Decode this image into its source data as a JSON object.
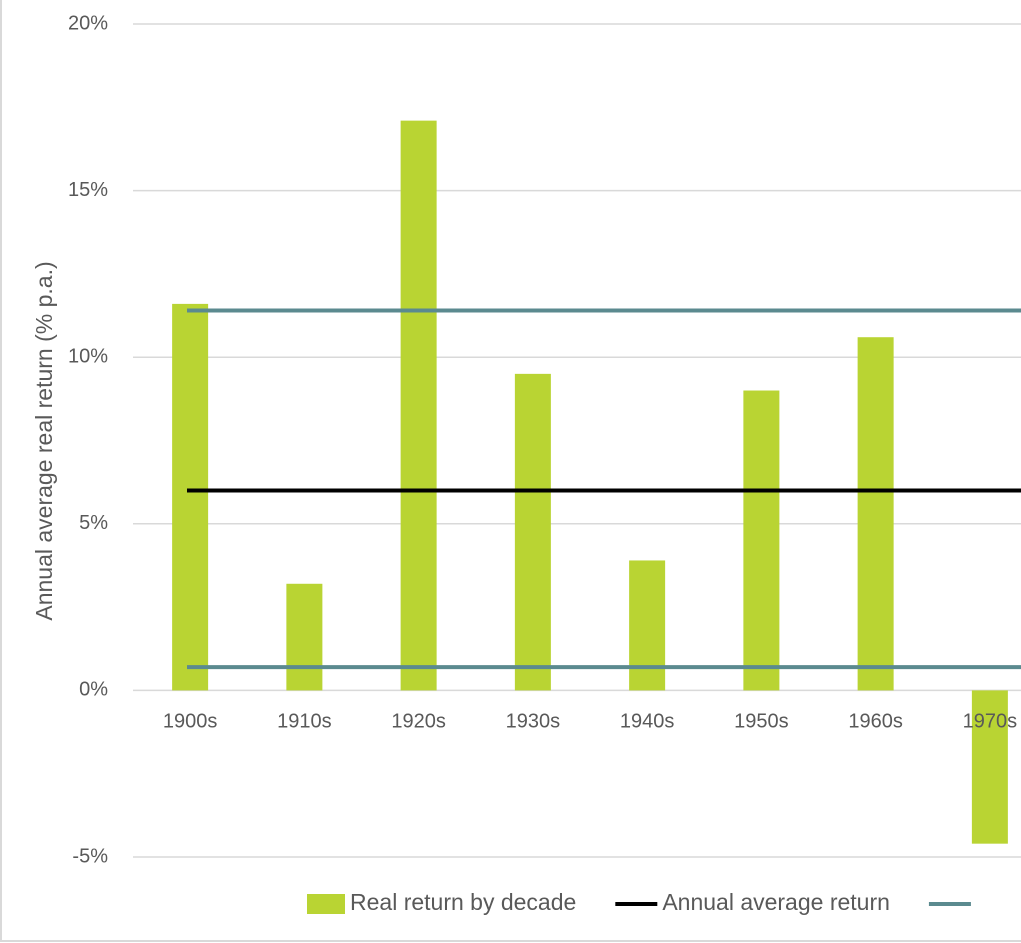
{
  "chart_data": {
    "type": "bar",
    "ylabel": "Annual average real return (% p.a.)",
    "categories": [
      "1900s",
      "1910s",
      "1920s",
      "1930s",
      "1940s",
      "1950s",
      "1960s",
      "1970s"
    ],
    "series": [
      {
        "name": "Real return by decade",
        "color": "#b9d433",
        "values": [
          11.6,
          3.2,
          17.1,
          9.5,
          3.9,
          9.0,
          10.6,
          -4.6
        ]
      }
    ],
    "hlines": [
      {
        "name": "Annual average return",
        "color": "#000000",
        "values": [
          6.0
        ]
      },
      {
        "color": "#5b8a8f",
        "values": [
          11.4,
          0.7
        ]
      }
    ],
    "ylim": [
      -5,
      20
    ],
    "yticks": [
      {
        "value": -5,
        "label": "-5%"
      },
      {
        "value": 0,
        "label": "0%"
      },
      {
        "value": 5,
        "label": "5%"
      },
      {
        "value": 10,
        "label": "10%"
      },
      {
        "value": 15,
        "label": "15%"
      },
      {
        "value": 20,
        "label": "20%"
      }
    ],
    "grid": true
  }
}
